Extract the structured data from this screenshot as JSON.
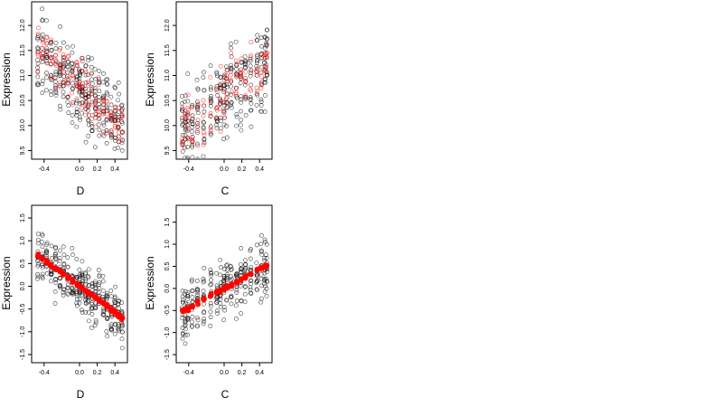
{
  "colors": {
    "background": "#ffffff",
    "points_observed": "#000000",
    "points_fitted": "#ff0000",
    "frame": "#000000"
  },
  "chart_data": [
    {
      "type": "scatter",
      "position": "top-left",
      "xlabel": "D",
      "ylabel": "Expression",
      "xlim": [
        -0.5,
        0.5
      ],
      "ylim": [
        9.4,
        12.4
      ],
      "x_ticks": [
        -0.4,
        0.0,
        0.2,
        0.4
      ],
      "x_tick_labels": [
        "-0.4",
        "0.0",
        "0.2",
        "0.4"
      ],
      "y_ticks": [
        9.5,
        10.0,
        10.5,
        11.0,
        11.5,
        12.0
      ],
      "y_tick_labels": [
        "9.5",
        "10.0",
        "10.5",
        "11.0",
        "11.5",
        "12.0"
      ],
      "observed": {
        "marker": "open-circle",
        "color": "#000000",
        "x_groups": [
          -0.47,
          -0.42,
          -0.37,
          -0.32,
          -0.27,
          -0.22,
          -0.18,
          -0.13,
          -0.08,
          -0.03,
          0.0,
          0.03,
          0.07,
          0.1,
          0.14,
          0.18,
          0.22,
          0.27,
          0.31,
          0.36,
          0.4,
          0.44,
          0.48
        ],
        "per_group": 14,
        "center": {
          "intercept": 10.75,
          "slope": -1.55
        },
        "spread": 0.55
      },
      "fitted": {
        "marker": "open-circle",
        "color": "#ff0000",
        "x_groups": [
          -0.47,
          -0.42,
          -0.37,
          -0.32,
          -0.27,
          -0.22,
          -0.18,
          -0.13,
          -0.08,
          -0.03,
          0.0,
          0.03,
          0.07,
          0.1,
          0.14,
          0.18,
          0.22,
          0.27,
          0.31,
          0.36,
          0.4,
          0.44,
          0.48
        ],
        "per_group": 6,
        "center": {
          "intercept": 10.75,
          "slope": -1.55
        },
        "spread": 0.35
      }
    },
    {
      "type": "scatter",
      "position": "top-right",
      "xlabel": "C",
      "ylabel": "Expression",
      "xlim": [
        -0.5,
        0.5
      ],
      "ylim": [
        9.4,
        12.4
      ],
      "x_ticks": [
        -0.4,
        0.0,
        0.2,
        0.4
      ],
      "x_tick_labels": [
        "-0.4",
        "0.0",
        "0.2",
        "0.4"
      ],
      "y_ticks": [
        9.5,
        10.0,
        10.5,
        11.0,
        11.5,
        12.0
      ],
      "y_tick_labels": [
        "9.5",
        "10.0",
        "10.5",
        "11.0",
        "11.5",
        "12.0"
      ],
      "observed": {
        "marker": "open-circle",
        "color": "#000000",
        "x_groups": [
          -0.47,
          -0.44,
          -0.41,
          -0.36,
          -0.3,
          -0.23,
          -0.15,
          -0.08,
          -0.04,
          0.0,
          0.03,
          0.08,
          0.14,
          0.19,
          0.24,
          0.3,
          0.37,
          0.42,
          0.46,
          0.48
        ],
        "per_group": 14,
        "center": {
          "intercept": 10.6,
          "slope": 1.5
        },
        "spread": 0.6
      },
      "fitted": {
        "marker": "open-circle",
        "color": "#ff0000",
        "x_groups": [
          -0.47,
          -0.44,
          -0.41,
          -0.36,
          -0.3,
          -0.23,
          -0.15,
          -0.08,
          -0.04,
          0.0,
          0.03,
          0.08,
          0.14,
          0.19,
          0.24,
          0.3,
          0.37,
          0.42,
          0.46,
          0.48
        ],
        "per_group": 6,
        "center": {
          "intercept": 10.6,
          "slope": 1.5
        },
        "spread": 0.4
      }
    },
    {
      "type": "scatter",
      "position": "bottom-left",
      "xlabel": "D",
      "ylabel": "Expression",
      "xlim": [
        -0.5,
        0.5
      ],
      "ylim": [
        -1.6,
        1.7
      ],
      "x_ticks": [
        -0.4,
        0.0,
        0.2,
        0.4
      ],
      "x_tick_labels": [
        "-0.4",
        "0.0",
        "0.2",
        "0.4"
      ],
      "y_ticks": [
        -1.5,
        -1.0,
        -0.5,
        0.0,
        0.5,
        1.0,
        1.5
      ],
      "y_tick_labels": [
        "-1.5",
        "-1.0",
        "-0.5",
        "0.0",
        "0.5",
        "1.0",
        "1.5"
      ],
      "observed": {
        "marker": "open-circle",
        "color": "#000000",
        "x_groups": [
          -0.47,
          -0.42,
          -0.37,
          -0.32,
          -0.27,
          -0.22,
          -0.18,
          -0.13,
          -0.08,
          -0.03,
          0.0,
          0.03,
          0.07,
          0.1,
          0.14,
          0.18,
          0.22,
          0.27,
          0.31,
          0.36,
          0.4,
          0.44,
          0.48
        ],
        "per_group": 14,
        "center": {
          "intercept": 0.0,
          "slope": -1.45
        },
        "spread": 0.4
      },
      "fitted": {
        "marker": "filled-circle",
        "color": "#ff0000",
        "x_groups": [
          -0.47,
          -0.42,
          -0.37,
          -0.32,
          -0.27,
          -0.22,
          -0.18,
          -0.13,
          -0.08,
          -0.03,
          0.0,
          0.03,
          0.07,
          0.1,
          0.14,
          0.18,
          0.22,
          0.27,
          0.31,
          0.36,
          0.4,
          0.44,
          0.48
        ],
        "per_group": 4,
        "center": {
          "intercept": 0.0,
          "slope": -1.45
        },
        "spread": 0.03
      }
    },
    {
      "type": "scatter",
      "position": "bottom-right",
      "xlabel": "C",
      "ylabel": "Expression",
      "xlim": [
        -0.5,
        0.5
      ],
      "ylim": [
        -1.6,
        1.8
      ],
      "x_ticks": [
        -0.4,
        0.0,
        0.2,
        0.4
      ],
      "x_tick_labels": [
        "-0.4",
        "0.0",
        "0.2",
        "0.4"
      ],
      "y_ticks": [
        -1.5,
        -1.0,
        -0.5,
        0.0,
        0.5,
        1.0,
        1.5
      ],
      "y_tick_labels": [
        "-1.5",
        "-1.0",
        "-0.5",
        "0.0",
        "0.5",
        "1.0",
        "1.5"
      ],
      "observed": {
        "marker": "open-circle",
        "color": "#000000",
        "x_groups": [
          -0.47,
          -0.44,
          -0.41,
          -0.36,
          -0.3,
          -0.23,
          -0.15,
          -0.08,
          -0.04,
          0.0,
          0.03,
          0.08,
          0.14,
          0.19,
          0.24,
          0.3,
          0.37,
          0.42,
          0.46,
          0.48
        ],
        "per_group": 14,
        "center": {
          "intercept": 0.0,
          "slope": 1.1
        },
        "spread": 0.45
      },
      "fitted": {
        "marker": "filled-circle",
        "color": "#ff0000",
        "x_groups": [
          -0.47,
          -0.44,
          -0.41,
          -0.36,
          -0.3,
          -0.23,
          -0.15,
          -0.08,
          -0.04,
          0.0,
          0.03,
          0.08,
          0.14,
          0.19,
          0.24,
          0.3,
          0.37,
          0.42,
          0.46,
          0.48
        ],
        "per_group": 4,
        "center": {
          "intercept": 0.0,
          "slope": 1.1
        },
        "spread": 0.03
      }
    }
  ]
}
